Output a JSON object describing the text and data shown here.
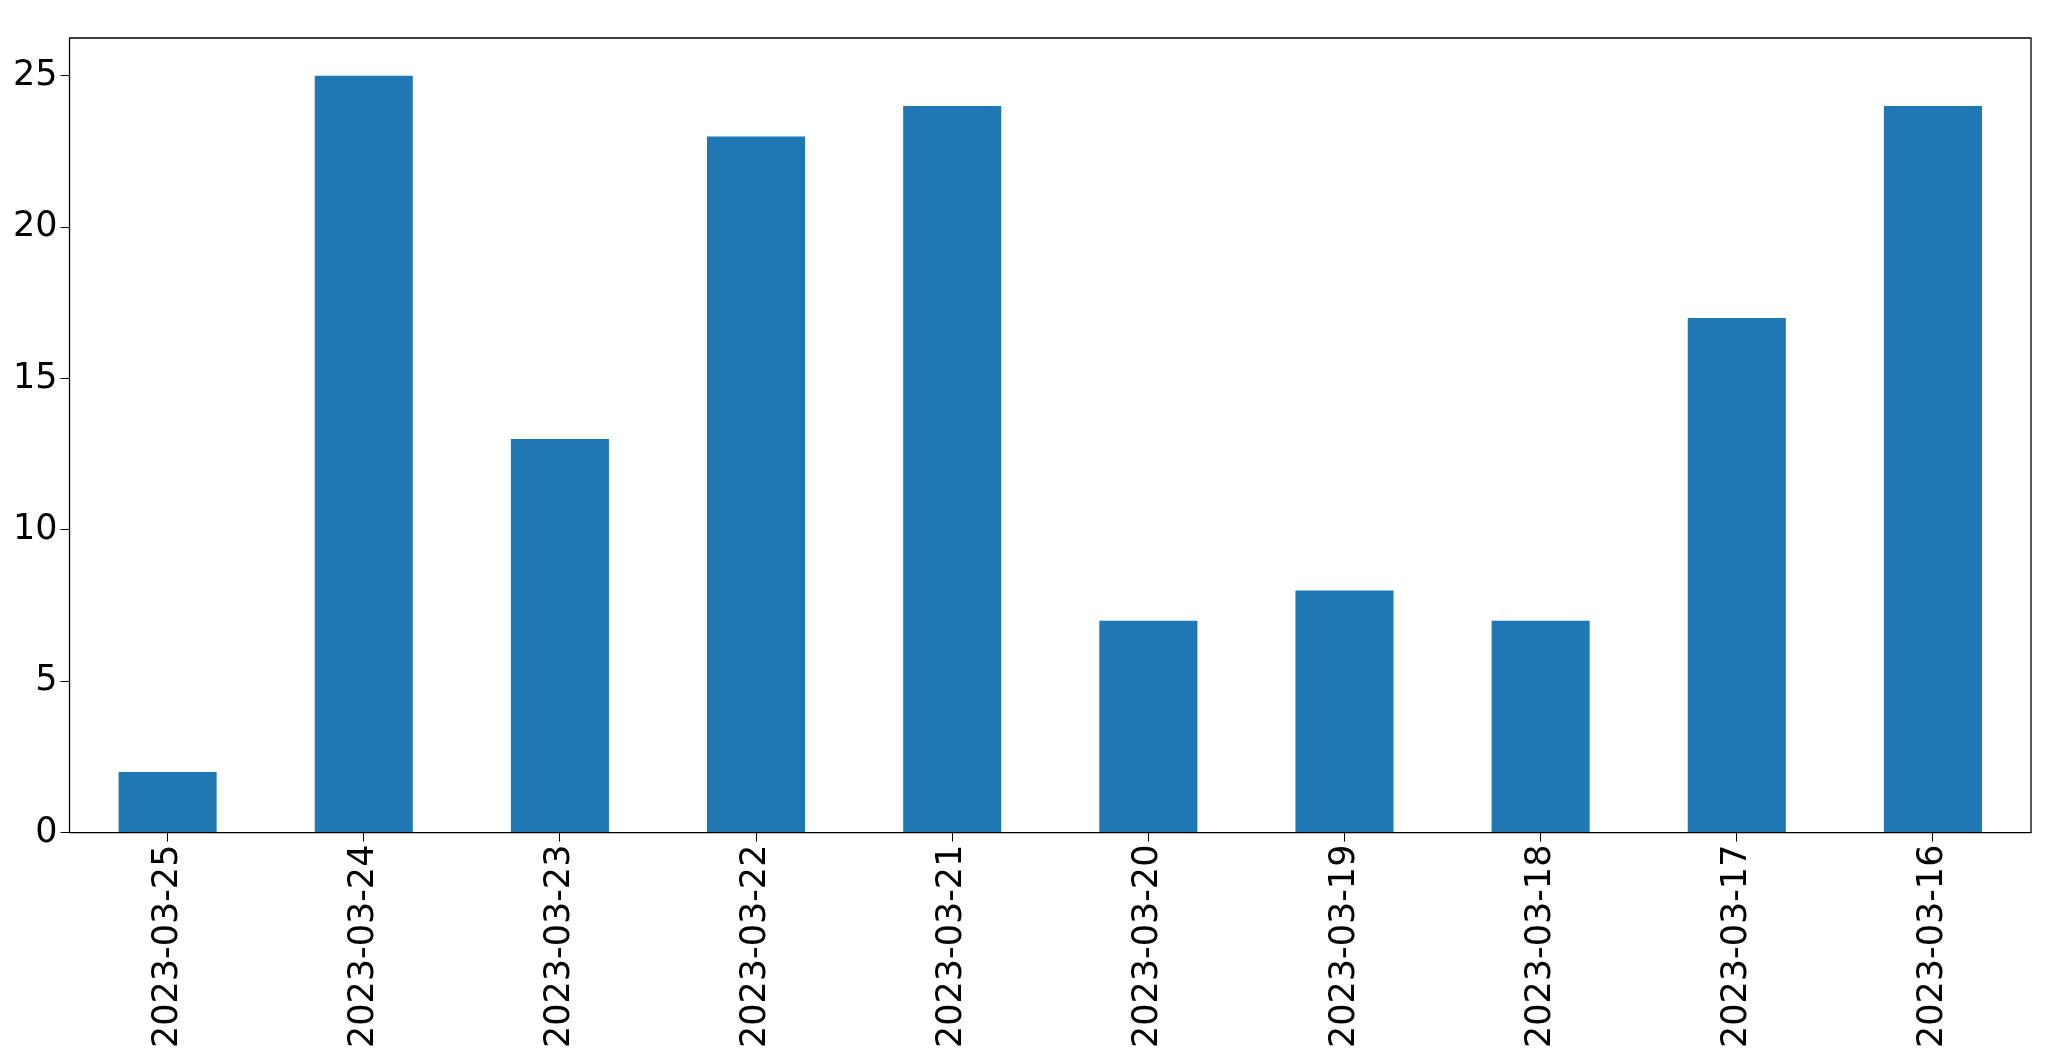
{
  "chart_data": {
    "type": "bar",
    "categories": [
      "2023-03-25",
      "2023-03-24",
      "2023-03-23",
      "2023-03-22",
      "2023-03-21",
      "2023-03-20",
      "2023-03-19",
      "2023-03-18",
      "2023-03-17",
      "2023-03-16"
    ],
    "values": [
      2,
      25,
      13,
      23,
      24,
      7,
      8,
      7,
      17,
      24
    ],
    "color": "#1f77b4",
    "ylim": [
      0,
      26.25
    ],
    "yticks": [
      0,
      5,
      10,
      15,
      20,
      25
    ]
  }
}
